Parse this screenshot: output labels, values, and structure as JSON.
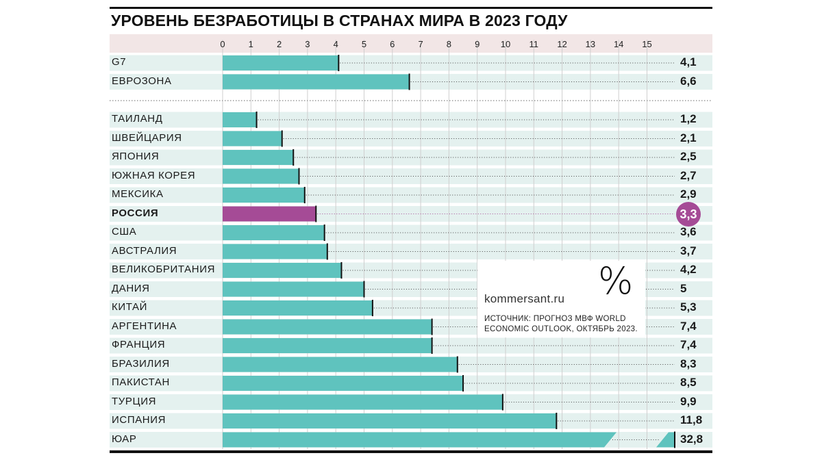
{
  "title": "УРОВЕНЬ БЕЗРАБОТИЦЫ В СТРАНАХ МИРА В 2023 ГОДУ",
  "branding": {
    "site": "kommersant.ru",
    "unit_symbol": "%"
  },
  "source_note": "ИСТОЧНИК: ПРОГНОЗ МВФ WORLD ECONOMIC OUTLOOK, ОКТЯБРЬ 2023.",
  "colors": {
    "bar": "#5fc3be",
    "highlight": "#a54b96",
    "row_band": "#e4f1ef",
    "axis_band": "#f2e6e6"
  },
  "chart_data": {
    "type": "bar",
    "orientation": "horizontal",
    "title": "УРОВЕНЬ БЕЗРАБОТИЦЫ В СТРАНАХ МИРА В 2023 ГОДУ",
    "xlim": [
      0,
      16
    ],
    "x_ticks": [
      "0",
      "1",
      "2",
      "3",
      "4",
      "5",
      "6",
      "7",
      "8",
      "9",
      "10",
      "11",
      "12",
      "13",
      "14",
      "15"
    ],
    "grid": true,
    "broken_axis_for": "ЮАР",
    "highlight": "РОССИЯ",
    "groups": [
      {
        "rows": [
          {
            "label": "G7",
            "value": 4.1,
            "value_label": "4,1"
          },
          {
            "label": "ЕВРОЗОНА",
            "value": 6.6,
            "value_label": "6,6"
          }
        ]
      },
      {
        "rows": [
          {
            "label": "ТАИЛАНД",
            "value": 1.2,
            "value_label": "1,2"
          },
          {
            "label": "ШВЕЙЦАРИЯ",
            "value": 2.1,
            "value_label": "2,1"
          },
          {
            "label": "ЯПОНИЯ",
            "value": 2.5,
            "value_label": "2,5"
          },
          {
            "label": "ЮЖНАЯ КОРЕЯ",
            "value": 2.7,
            "value_label": "2,7"
          },
          {
            "label": "МЕКСИКА",
            "value": 2.9,
            "value_label": "2,9"
          },
          {
            "label": "РОССИЯ",
            "value": 3.3,
            "value_label": "3,3"
          },
          {
            "label": "США",
            "value": 3.6,
            "value_label": "3,6"
          },
          {
            "label": "АВСТРАЛИЯ",
            "value": 3.7,
            "value_label": "3,7"
          },
          {
            "label": "ВЕЛИКОБРИТАНИЯ",
            "value": 4.2,
            "value_label": "4,2"
          },
          {
            "label": "ДАНИЯ",
            "value": 5,
            "value_label": "5"
          },
          {
            "label": "КИТАЙ",
            "value": 5.3,
            "value_label": "5,3"
          },
          {
            "label": "АРГЕНТИНА",
            "value": 7.4,
            "value_label": "7,4"
          },
          {
            "label": "ФРАНЦИЯ",
            "value": 7.4,
            "value_label": "7,4"
          },
          {
            "label": "БРАЗИЛИЯ",
            "value": 8.3,
            "value_label": "8,3"
          },
          {
            "label": "ПАКИСТАН",
            "value": 8.5,
            "value_label": "8,5"
          },
          {
            "label": "ТУРЦИЯ",
            "value": 9.9,
            "value_label": "9,9"
          },
          {
            "label": "ИСПАНИЯ",
            "value": 11.8,
            "value_label": "11,8"
          },
          {
            "label": "ЮАР",
            "value": 32.8,
            "value_label": "32,8"
          }
        ]
      }
    ]
  }
}
